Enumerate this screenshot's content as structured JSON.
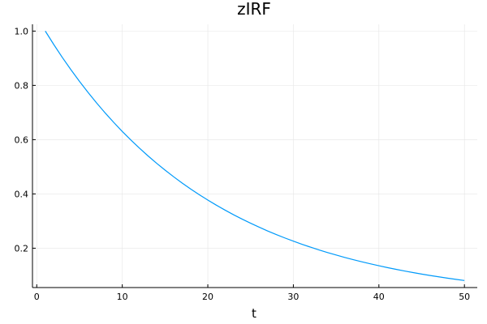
{
  "chart_data": {
    "type": "line",
    "title": "zIRF",
    "xlabel": "t",
    "ylabel": "",
    "xlim": [
      -0.5,
      51.5
    ],
    "ylim": [
      0.055,
      1.025
    ],
    "xticks": [
      0,
      10,
      20,
      30,
      40,
      50
    ],
    "yticks": [
      0.2,
      0.4,
      0.6,
      0.8,
      1.0
    ],
    "xtick_labels": [
      "0",
      "10",
      "20",
      "30",
      "40",
      "50"
    ],
    "ytick_labels": [
      "0.2",
      "0.4",
      "0.6",
      "0.8",
      "1.0"
    ],
    "grid": true,
    "legend": "none",
    "series": [
      {
        "color": "#009AFA",
        "x": [
          1,
          2,
          3,
          4,
          5,
          6,
          7,
          8,
          9,
          10,
          11,
          12,
          13,
          14,
          15,
          16,
          17,
          18,
          19,
          20,
          21,
          22,
          23,
          24,
          25,
          26,
          27,
          28,
          29,
          30,
          31,
          32,
          33,
          34,
          35,
          36,
          37,
          38,
          39,
          40,
          41,
          42,
          43,
          44,
          45,
          46,
          47,
          48,
          49,
          50
        ],
        "y": [
          1.0,
          0.95,
          0.9025,
          0.8574,
          0.8145,
          0.7738,
          0.7351,
          0.6983,
          0.6634,
          0.6302,
          0.5987,
          0.5688,
          0.5404,
          0.5133,
          0.4877,
          0.4633,
          0.4401,
          0.4181,
          0.3972,
          0.3774,
          0.3585,
          0.3406,
          0.3235,
          0.3074,
          0.292,
          0.2774,
          0.2635,
          0.2503,
          0.2378,
          0.2259,
          0.2146,
          0.2039,
          0.1937,
          0.184,
          0.1748,
          0.1661,
          0.1578,
          0.1499,
          0.1424,
          0.1353,
          0.1285,
          0.1221,
          0.116,
          0.1102,
          0.1047,
          0.0994,
          0.0945,
          0.0897,
          0.0853,
          0.081
        ]
      }
    ]
  }
}
